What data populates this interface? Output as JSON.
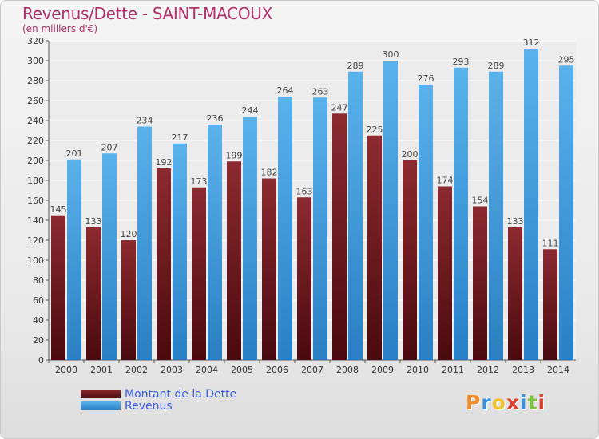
{
  "header": {
    "title": "Revenus/Dette - SAINT-MACOUX",
    "subtitle": "(en milliers d'€)"
  },
  "chart_data": {
    "type": "bar",
    "categories": [
      "2000",
      "2001",
      "2002",
      "2003",
      "2004",
      "2005",
      "2006",
      "2007",
      "2008",
      "2009",
      "2010",
      "2011",
      "2012",
      "2013",
      "2014"
    ],
    "series": [
      {
        "name": "Montant de la Dette",
        "values": [
          145,
          133,
          120,
          192,
          173,
          199,
          182,
          163,
          247,
          225,
          200,
          174,
          154,
          133,
          111
        ],
        "color": "#6b1a1f"
      },
      {
        "name": "Revenus",
        "values": [
          201,
          207,
          234,
          217,
          236,
          244,
          264,
          263,
          289,
          300,
          276,
          293,
          289,
          312,
          295
        ],
        "color": "#4aa3e0"
      }
    ],
    "yticks": [
      0,
      20,
      40,
      60,
      80,
      100,
      120,
      140,
      160,
      180,
      200,
      220,
      240,
      260,
      280,
      300,
      320
    ],
    "ylim": [
      0,
      320
    ],
    "grid": true,
    "legend_position": "bottom-left"
  },
  "legend": {
    "items": [
      {
        "label": "Montant de la Dette",
        "color": "#6b1a1f"
      },
      {
        "label": "Revenus",
        "color": "#4aa3e0"
      }
    ]
  },
  "logo": {
    "text": "Proxiti",
    "letters": [
      {
        "ch": "P",
        "color": "#f28c28"
      },
      {
        "ch": "r",
        "color": "#3a8fd9"
      },
      {
        "ch": "o",
        "color": "#f2c12e"
      },
      {
        "ch": "x",
        "color": "#e0412f"
      },
      {
        "ch": "i",
        "color": "#3a8fd9"
      },
      {
        "ch": "t",
        "color": "#7cc242"
      },
      {
        "ch": "i",
        "color": "#e0412f"
      }
    ]
  }
}
